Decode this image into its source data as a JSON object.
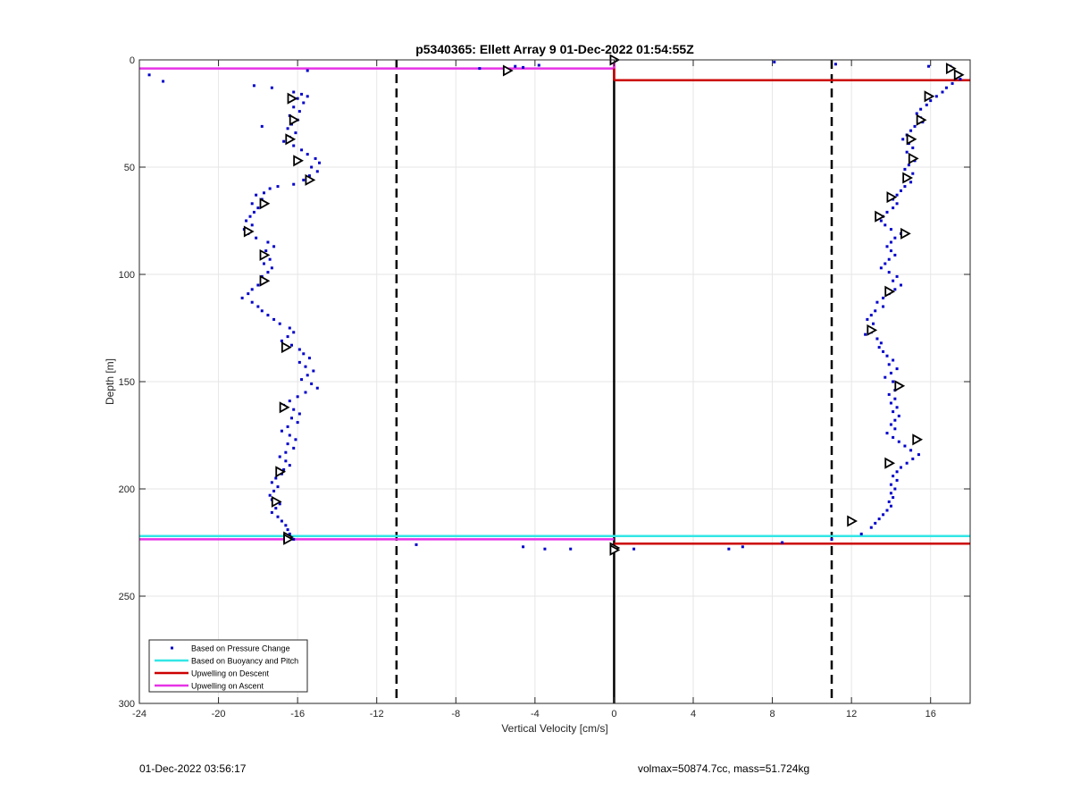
{
  "chart_data": {
    "type": "scatter",
    "title": "p5340365: Ellett Array 9 01-Dec-2022 01:54:55Z",
    "xlabel": "Vertical Velocity [cm/s]",
    "ylabel": "Depth [m]",
    "xlim": [
      -24,
      18
    ],
    "ylim": [
      300,
      0
    ],
    "y_reversed": true,
    "x_ticks": [
      -24,
      -20,
      -16,
      -12,
      -8,
      -4,
      0,
      4,
      8,
      12,
      16
    ],
    "y_ticks": [
      0,
      50,
      100,
      150,
      200,
      250,
      300
    ],
    "grid": true,
    "legend_position": "bottom-left",
    "legend": [
      {
        "label": "Based on Pressure Change",
        "style": "dot",
        "color": "#0000cc"
      },
      {
        "label": "Based on Buoyancy and Pitch",
        "style": "line",
        "color": "#33e6e6"
      },
      {
        "label": "Upwelling on Descent",
        "style": "line",
        "color": "#cc0000"
      },
      {
        "label": "Upwelling on Ascent",
        "style": "line",
        "color": "#e633e6"
      }
    ],
    "thresholds": [
      -11,
      11
    ],
    "zero_line": 0,
    "descent_points": [
      [
        17.0,
        3
      ],
      [
        16.9,
        5
      ],
      [
        17.3,
        7
      ],
      [
        17.5,
        9
      ],
      [
        17.1,
        11
      ],
      [
        16.8,
        13
      ],
      [
        16.6,
        15
      ],
      [
        16.3,
        17
      ],
      [
        16.0,
        19
      ],
      [
        15.8,
        21
      ],
      [
        15.5,
        23
      ],
      [
        15.3,
        25
      ],
      [
        15.5,
        27
      ],
      [
        15.6,
        29
      ],
      [
        15.2,
        31
      ],
      [
        15.0,
        33
      ],
      [
        14.8,
        35
      ],
      [
        14.6,
        37
      ],
      [
        14.9,
        39
      ],
      [
        15.1,
        41
      ],
      [
        14.8,
        43
      ],
      [
        15.0,
        45
      ],
      [
        15.2,
        47
      ],
      [
        14.9,
        49
      ],
      [
        14.7,
        51
      ],
      [
        15.1,
        53
      ],
      [
        14.8,
        55
      ],
      [
        15.0,
        57
      ],
      [
        14.7,
        59
      ],
      [
        14.5,
        61
      ],
      [
        14.3,
        63
      ],
      [
        14.1,
        65
      ],
      [
        14.3,
        67
      ],
      [
        14.1,
        69
      ],
      [
        13.8,
        71
      ],
      [
        13.6,
        73
      ],
      [
        13.5,
        75
      ],
      [
        13.7,
        77
      ],
      [
        14.0,
        79
      ],
      [
        14.5,
        81
      ],
      [
        14.2,
        83
      ],
      [
        14.0,
        85
      ],
      [
        13.8,
        87
      ],
      [
        14.0,
        89
      ],
      [
        14.2,
        91
      ],
      [
        13.9,
        93
      ],
      [
        13.7,
        95
      ],
      [
        13.5,
        97
      ],
      [
        13.9,
        99
      ],
      [
        14.3,
        101
      ],
      [
        14.1,
        103
      ],
      [
        14.5,
        105
      ],
      [
        14.2,
        107
      ],
      [
        13.9,
        109
      ],
      [
        13.6,
        111
      ],
      [
        13.3,
        113
      ],
      [
        13.6,
        115
      ],
      [
        13.2,
        117
      ],
      [
        13.0,
        119
      ],
      [
        12.8,
        121
      ],
      [
        13.1,
        123
      ],
      [
        12.9,
        125
      ],
      [
        13.0,
        127
      ],
      [
        12.7,
        128
      ],
      [
        13.3,
        130
      ],
      [
        13.5,
        132
      ],
      [
        13.4,
        134
      ],
      [
        13.6,
        136
      ],
      [
        13.8,
        138
      ],
      [
        14.1,
        140
      ],
      [
        13.9,
        142
      ],
      [
        14.3,
        144
      ],
      [
        14.0,
        146
      ],
      [
        13.7,
        148
      ],
      [
        14.1,
        150
      ],
      [
        14.4,
        152
      ],
      [
        14.2,
        154
      ],
      [
        13.9,
        156
      ],
      [
        14.2,
        158
      ],
      [
        14.0,
        160
      ],
      [
        14.3,
        162
      ],
      [
        14.1,
        164
      ],
      [
        14.4,
        166
      ],
      [
        14.2,
        168
      ],
      [
        14.0,
        170
      ],
      [
        14.2,
        172
      ],
      [
        13.8,
        174
      ],
      [
        14.1,
        176
      ],
      [
        14.4,
        178
      ],
      [
        14.7,
        180
      ],
      [
        15.0,
        182
      ],
      [
        15.4,
        184
      ],
      [
        15.1,
        186
      ],
      [
        14.8,
        188
      ],
      [
        14.5,
        190
      ],
      [
        14.3,
        192
      ],
      [
        14.1,
        194
      ],
      [
        14.3,
        196
      ],
      [
        14.0,
        198
      ],
      [
        14.2,
        200
      ],
      [
        14.0,
        202
      ],
      [
        14.1,
        204
      ],
      [
        13.9,
        206
      ],
      [
        14.0,
        208
      ],
      [
        13.8,
        210
      ],
      [
        13.6,
        212
      ],
      [
        13.4,
        214
      ],
      [
        13.2,
        216
      ],
      [
        13.0,
        218
      ],
      [
        12.5,
        221
      ],
      [
        8.1,
        1
      ],
      [
        11.2,
        2
      ],
      [
        15.9,
        3
      ],
      [
        11.0,
        223.5
      ],
      [
        8.5,
        225
      ],
      [
        6.5,
        227
      ],
      [
        5.8,
        228
      ],
      [
        1.0,
        228
      ]
    ],
    "ascent_points": [
      [
        -15.5,
        5
      ],
      [
        -23.5,
        7
      ],
      [
        -22.8,
        10
      ],
      [
        -18.2,
        12
      ],
      [
        -17.3,
        13
      ],
      [
        -16.2,
        15
      ],
      [
        -15.8,
        16
      ],
      [
        -15.5,
        17
      ],
      [
        -16.0,
        18
      ],
      [
        -15.7,
        20
      ],
      [
        -16.2,
        22
      ],
      [
        -15.9,
        24
      ],
      [
        -16.4,
        26
      ],
      [
        -16.0,
        28
      ],
      [
        -16.3,
        30
      ],
      [
        -17.8,
        31
      ],
      [
        -16.5,
        32
      ],
      [
        -16.1,
        34
      ],
      [
        -16.4,
        36
      ],
      [
        -16.7,
        38
      ],
      [
        -16.2,
        40
      ],
      [
        -15.8,
        42
      ],
      [
        -15.5,
        44
      ],
      [
        -15.1,
        46
      ],
      [
        -14.9,
        48
      ],
      [
        -15.3,
        50
      ],
      [
        -15.0,
        52
      ],
      [
        -15.4,
        54
      ],
      [
        -15.7,
        56
      ],
      [
        -16.2,
        58
      ],
      [
        -17.0,
        59
      ],
      [
        -17.4,
        60
      ],
      [
        -17.7,
        62
      ],
      [
        -18.1,
        63
      ],
      [
        -17.8,
        65
      ],
      [
        -18.3,
        67
      ],
      [
        -18.0,
        69
      ],
      [
        -18.2,
        71
      ],
      [
        -18.4,
        73
      ],
      [
        -18.6,
        75
      ],
      [
        -18.3,
        77
      ],
      [
        -18.7,
        79
      ],
      [
        -18.5,
        81
      ],
      [
        -18.1,
        83
      ],
      [
        -17.5,
        85
      ],
      [
        -17.2,
        87
      ],
      [
        -17.6,
        89
      ],
      [
        -17.8,
        91
      ],
      [
        -17.4,
        93
      ],
      [
        -17.7,
        95
      ],
      [
        -17.3,
        97
      ],
      [
        -17.5,
        99
      ],
      [
        -17.8,
        101
      ],
      [
        -17.6,
        103
      ],
      [
        -18.0,
        105
      ],
      [
        -18.3,
        107
      ],
      [
        -18.5,
        109
      ],
      [
        -18.8,
        111
      ],
      [
        -18.3,
        113
      ],
      [
        -18.0,
        115
      ],
      [
        -17.8,
        117
      ],
      [
        -17.5,
        119
      ],
      [
        -17.2,
        121
      ],
      [
        -16.9,
        123
      ],
      [
        -16.4,
        125
      ],
      [
        -16.2,
        127
      ],
      [
        -16.5,
        129
      ],
      [
        -16.8,
        131
      ],
      [
        -16.3,
        133
      ],
      [
        -15.9,
        135
      ],
      [
        -15.7,
        137
      ],
      [
        -15.4,
        139
      ],
      [
        -15.9,
        141
      ],
      [
        -15.6,
        143
      ],
      [
        -15.2,
        145
      ],
      [
        -15.5,
        147
      ],
      [
        -15.8,
        149
      ],
      [
        -15.3,
        151
      ],
      [
        -15.0,
        153
      ],
      [
        -15.6,
        155
      ],
      [
        -16.0,
        157
      ],
      [
        -16.4,
        159
      ],
      [
        -16.7,
        161
      ],
      [
        -16.2,
        163
      ],
      [
        -15.9,
        165
      ],
      [
        -16.3,
        167
      ],
      [
        -16.0,
        169
      ],
      [
        -16.5,
        171
      ],
      [
        -16.8,
        173
      ],
      [
        -16.4,
        175
      ],
      [
        -16.1,
        177
      ],
      [
        -16.5,
        179
      ],
      [
        -16.2,
        181
      ],
      [
        -16.6,
        183
      ],
      [
        -16.9,
        185
      ],
      [
        -16.6,
        187
      ],
      [
        -16.4,
        189
      ],
      [
        -16.7,
        191
      ],
      [
        -16.8,
        193
      ],
      [
        -17.1,
        195
      ],
      [
        -17.3,
        197
      ],
      [
        -17.0,
        199
      ],
      [
        -17.2,
        201
      ],
      [
        -17.4,
        203
      ],
      [
        -17.3,
        205
      ],
      [
        -16.9,
        207
      ],
      [
        -17.1,
        209
      ],
      [
        -17.3,
        211
      ],
      [
        -17.0,
        213
      ],
      [
        -16.8,
        215
      ],
      [
        -16.6,
        217
      ],
      [
        -16.5,
        219
      ],
      [
        -16.4,
        221
      ],
      [
        -16.2,
        223.5
      ],
      [
        -6.8,
        4
      ],
      [
        -5.0,
        3
      ],
      [
        -4.6,
        3.5
      ],
      [
        -3.8,
        2.5
      ],
      [
        -10.0,
        226
      ],
      [
        -4.6,
        227
      ],
      [
        -3.5,
        228
      ],
      [
        -2.2,
        228
      ]
    ],
    "descent_markers": [
      [
        17.0,
        4
      ],
      [
        17.4,
        7
      ],
      [
        15.9,
        17
      ],
      [
        15.5,
        28
      ],
      [
        15.0,
        37
      ],
      [
        15.1,
        46
      ],
      [
        14.8,
        55
      ],
      [
        14.0,
        64
      ],
      [
        13.4,
        73
      ],
      [
        14.7,
        81
      ],
      [
        13.9,
        108
      ],
      [
        13.0,
        126
      ],
      [
        14.4,
        152
      ],
      [
        15.3,
        177
      ],
      [
        13.9,
        188
      ],
      [
        12.0,
        215
      ],
      [
        0.0,
        0
      ]
    ],
    "ascent_markers": [
      [
        -5.4,
        5
      ],
      [
        -16.3,
        18
      ],
      [
        -16.2,
        28
      ],
      [
        -16.4,
        37
      ],
      [
        -16.0,
        47
      ],
      [
        -15.4,
        56
      ],
      [
        -17.7,
        67
      ],
      [
        -18.5,
        80
      ],
      [
        -17.7,
        91
      ],
      [
        -17.7,
        103
      ],
      [
        -16.6,
        134
      ],
      [
        -16.7,
        162
      ],
      [
        -16.9,
        192
      ],
      [
        -17.1,
        206
      ],
      [
        -16.5,
        222.5
      ],
      [
        -16.5,
        223.5
      ],
      [
        0.0,
        227.5
      ],
      [
        0.0,
        228.5
      ]
    ],
    "lines": [
      {
        "series": "Based on Buoyancy and Pitch",
        "x1": -24,
        "x2": 18,
        "y1": 222,
        "y2": 222,
        "color": "#33e6e6"
      },
      {
        "series": "Upwelling on Ascent",
        "x1": -24,
        "x2": 0,
        "y1": 4,
        "y2": 4,
        "color": "#e633e6"
      },
      {
        "series": "Upwelling on Ascent",
        "x1": -24,
        "x2": 0,
        "y1": 223.5,
        "y2": 223.5,
        "color": "#e633e6"
      },
      {
        "series": "Upwelling on Descent",
        "x1": 0,
        "x2": 18,
        "y1": 9.5,
        "y2": 9.5,
        "color": "#cc0000"
      },
      {
        "series": "Upwelling on Descent",
        "x1": 0,
        "x2": 18,
        "y1": 225.5,
        "y2": 225.5,
        "color": "#cc0000"
      },
      {
        "series": "Upwelling on Descent",
        "x1": 0,
        "x2": 0,
        "y1": 0,
        "y2": 9.5,
        "color": "#cc0000"
      },
      {
        "series": "Upwelling on Ascent",
        "x1": 0,
        "x2": 0,
        "y1": 0,
        "y2": 4,
        "color": "#e633e6"
      }
    ]
  },
  "footer": {
    "left": "01-Dec-2022 03:56:17",
    "right": "volmax=50874.7cc, mass=51.724kg"
  }
}
